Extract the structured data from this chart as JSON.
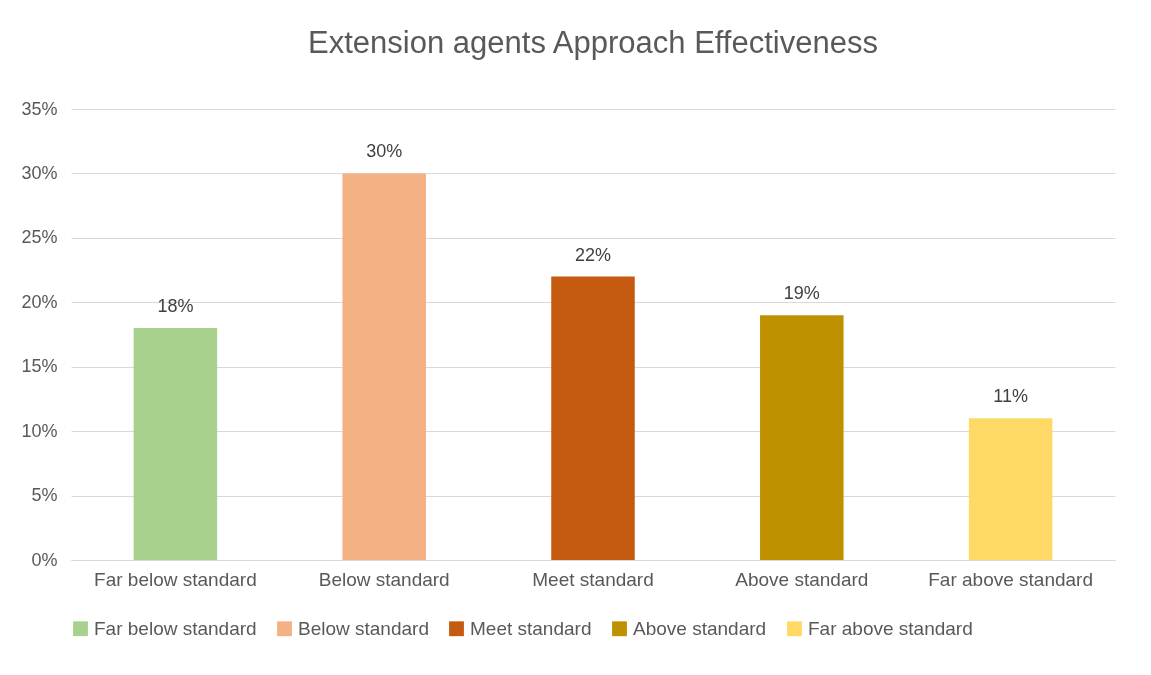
{
  "chart_data": {
    "type": "bar",
    "title": "Extension agents Approach Effectiveness",
    "categories": [
      "Far below standard",
      "Below standard",
      "Meet standard",
      "Above standard",
      "Far above standard"
    ],
    "series": [
      {
        "name": "Far below standard",
        "color": "#a9d18e",
        "values": [
          18,
          null,
          null,
          null,
          null
        ],
        "value_labels": [
          "18%",
          null,
          null,
          null,
          null
        ]
      },
      {
        "name": "Below standard",
        "color": "#f4b183",
        "values": [
          null,
          30,
          null,
          null,
          null
        ],
        "value_labels": [
          null,
          "30%",
          null,
          null,
          null
        ]
      },
      {
        "name": "Meet standard",
        "color": "#c55a11",
        "values": [
          null,
          null,
          22,
          null,
          null
        ],
        "value_labels": [
          null,
          null,
          "22%",
          null,
          null
        ]
      },
      {
        "name": "Above standard",
        "color": "#bf9000",
        "values": [
          null,
          null,
          null,
          19,
          null
        ],
        "value_labels": [
          null,
          null,
          null,
          "19%",
          null
        ]
      },
      {
        "name": "Far above standard",
        "color": "#ffd966",
        "values": [
          null,
          null,
          null,
          null,
          11
        ],
        "value_labels": [
          null,
          null,
          null,
          null,
          "11%"
        ]
      }
    ],
    "ylim": [
      0,
      35
    ],
    "yticks": [
      {
        "value": 0,
        "label": "0%"
      },
      {
        "value": 5,
        "label": "5%"
      },
      {
        "value": 10,
        "label": "10%"
      },
      {
        "value": 15,
        "label": "15%"
      },
      {
        "value": 20,
        "label": "20%"
      },
      {
        "value": 25,
        "label": "25%"
      },
      {
        "value": 30,
        "label": "30%"
      },
      {
        "value": 35,
        "label": "35%"
      }
    ],
    "grid": "y",
    "legend": "bottom"
  }
}
